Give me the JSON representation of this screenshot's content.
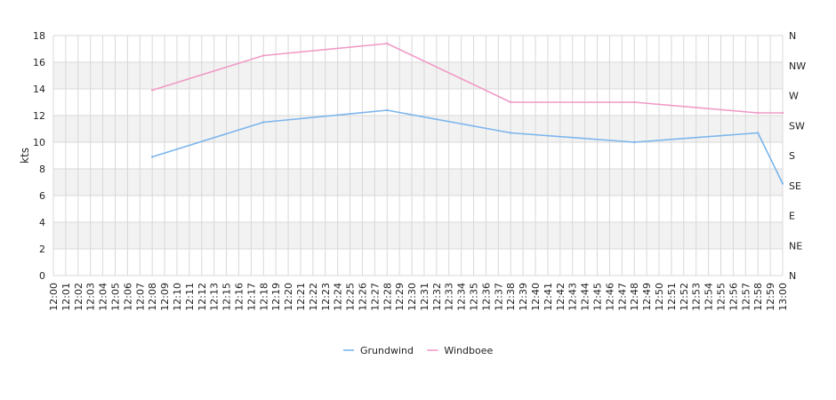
{
  "chart_data": {
    "type": "line",
    "title": "",
    "xlabel": "",
    "ylabel": "kts",
    "ylim": [
      0,
      18
    ],
    "y_ticks": [
      "0",
      "2",
      "4",
      "6",
      "8",
      "10",
      "12",
      "14",
      "16",
      "18"
    ],
    "right_axis_ticks": [
      "N",
      "NE",
      "E",
      "SE",
      "S",
      "SW",
      "W",
      "NW",
      "N"
    ],
    "x_ticks": [
      "12:00",
      "12:01",
      "12:02",
      "12:03",
      "12:04",
      "12:05",
      "12:06",
      "12:07",
      "12:08",
      "12:09",
      "12:10",
      "12:11",
      "12:12",
      "12:13",
      "12:15",
      "12:16",
      "12:17",
      "12:18",
      "12:19",
      "12:20",
      "12:21",
      "12:22",
      "12:23",
      "12:24",
      "12:25",
      "12:26",
      "12:27",
      "12:28",
      "12:29",
      "12:30",
      "12:31",
      "12:32",
      "12:33",
      "12:34",
      "12:35",
      "12:36",
      "12:37",
      "12:38",
      "12:39",
      "12:40",
      "12:41",
      "12:42",
      "12:43",
      "12:44",
      "12:45",
      "12:46",
      "12:47",
      "12:48",
      "12:49",
      "12:50",
      "12:51",
      "12:52",
      "12:53",
      "12:54",
      "12:55",
      "12:56",
      "12:57",
      "12:58",
      "12:59",
      "13:00"
    ],
    "grid": true,
    "legend_position": "bottom-center",
    "series": [
      {
        "name": "Grundwind",
        "color": "#7cb5ec",
        "points": [
          {
            "x": "12:08",
            "y": 8.9
          },
          {
            "x": "12:18",
            "y": 11.5
          },
          {
            "x": "12:28",
            "y": 12.4
          },
          {
            "x": "12:38",
            "y": 10.7
          },
          {
            "x": "12:48",
            "y": 10.0
          },
          {
            "x": "12:58",
            "y": 10.7
          },
          {
            "x": "13:00",
            "y": 6.9
          }
        ]
      },
      {
        "name": "Windboee",
        "color": "#f09ac6",
        "points": [
          {
            "x": "12:08",
            "y": 13.9
          },
          {
            "x": "12:18",
            "y": 16.5
          },
          {
            "x": "12:28",
            "y": 17.4
          },
          {
            "x": "12:38",
            "y": 13.0
          },
          {
            "x": "12:48",
            "y": 13.0
          },
          {
            "x": "12:58",
            "y": 12.2
          },
          {
            "x": "13:00",
            "y": 12.2
          }
        ]
      }
    ]
  }
}
